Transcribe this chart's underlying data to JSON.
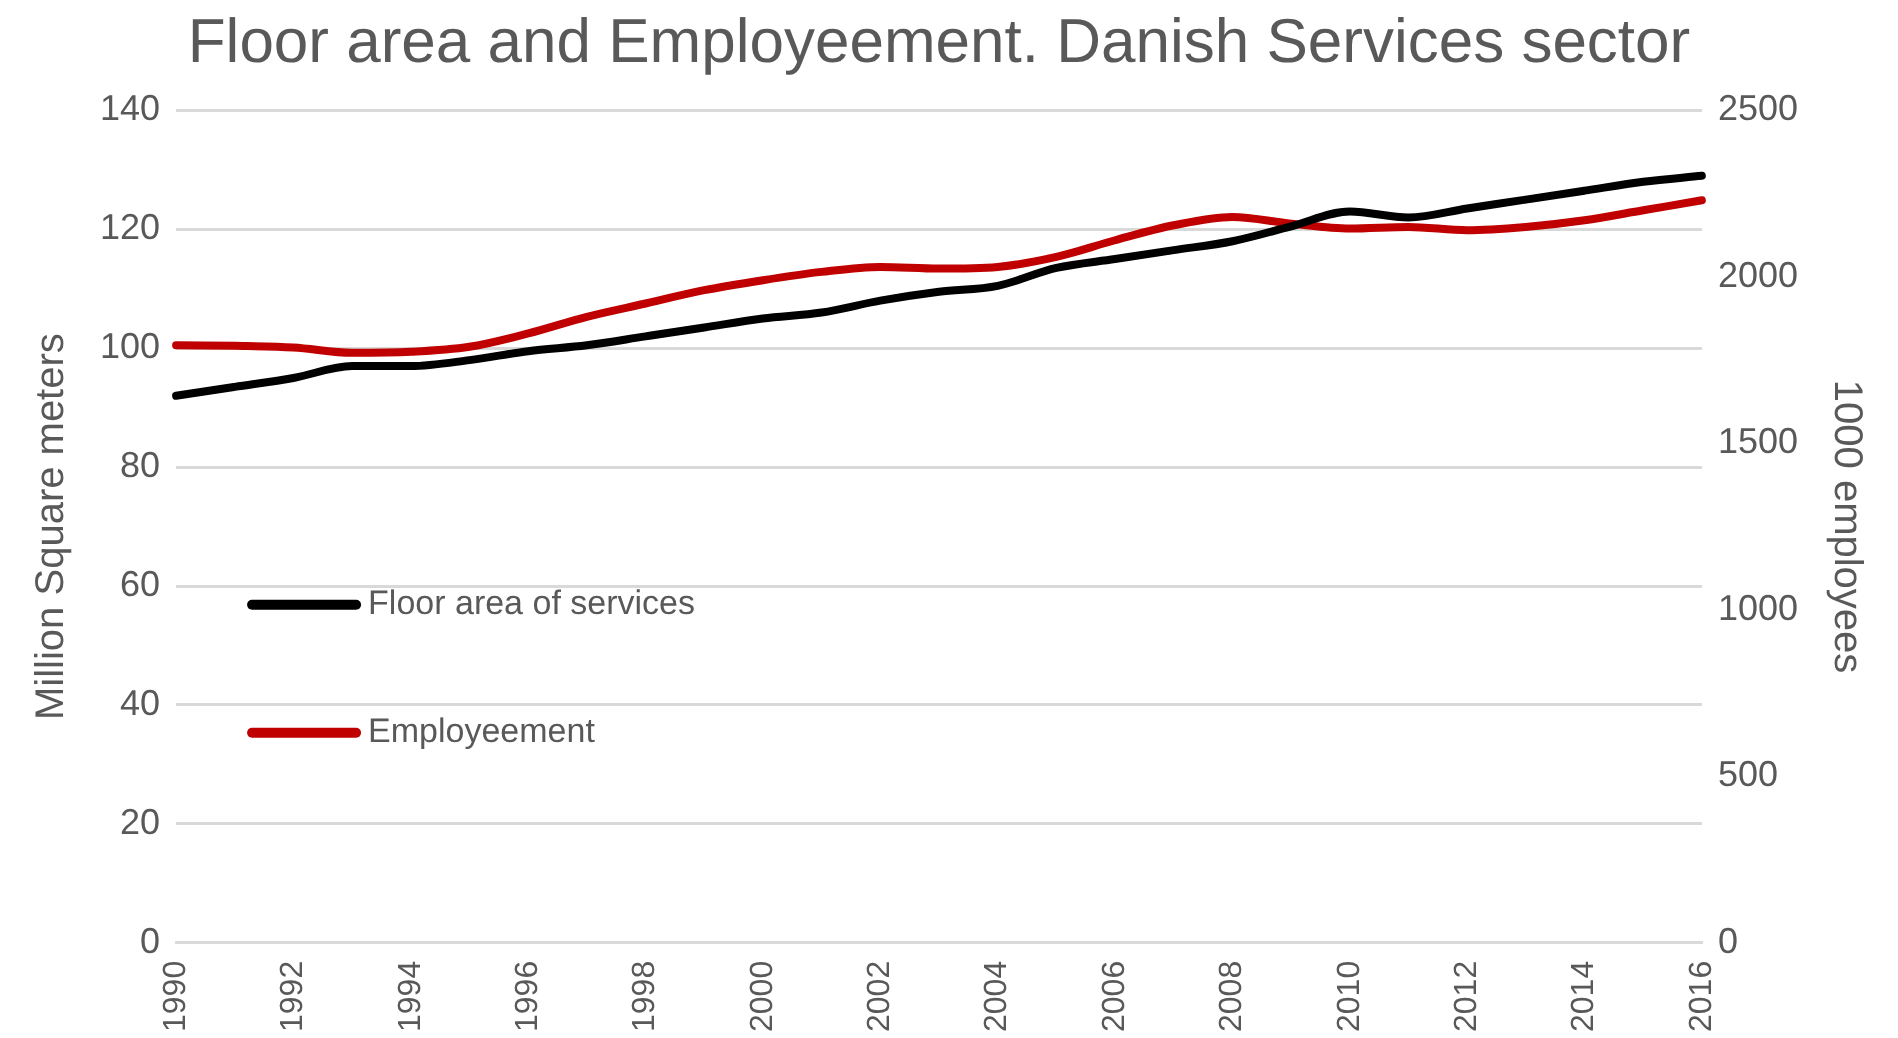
{
  "chart_data": {
    "type": "line",
    "title": "Floor area and Employeement. Danish Services sector",
    "ylabel": "Million Square meters",
    "y2label": "1000 employees",
    "categories": [
      "1990",
      null,
      "1992",
      null,
      "1994",
      null,
      "1996",
      null,
      "1998",
      null,
      "2000",
      null,
      "2002",
      null,
      "2004",
      null,
      "2006",
      null,
      "2008",
      null,
      "2010",
      null,
      "2012",
      null,
      "2014",
      null,
      "2016"
    ],
    "series": [
      {
        "name": "Floor area of services",
        "color": "#000000",
        "values": [
          92,
          93.5,
          95,
          97,
          97,
          98,
          99.5,
          100.5,
          102,
          103.5,
          105,
          106,
          108,
          109.5,
          110.5,
          113.5,
          115,
          116.5,
          118,
          120.5,
          123,
          122,
          123.5,
          125,
          126.5,
          128,
          129
        ]
      },
      {
        "name": "Employeement",
        "color": "#c00000",
        "axis": "y2",
        "values": [
          1795,
          1793,
          1788,
          1772,
          1775,
          1790,
          1830,
          1880,
          1920,
          1960,
          1990,
          2015,
          2030,
          2025,
          2030,
          2060,
          2110,
          2155,
          2180,
          2160,
          2145,
          2150,
          2140,
          2150,
          2170,
          2200,
          2230
        ]
      }
    ],
    "ylim": [
      0,
      140
    ],
    "yticks": [
      0,
      20,
      40,
      60,
      80,
      100,
      120,
      140
    ],
    "y2lim": [
      0,
      2500
    ],
    "y2ticks": [
      0,
      500,
      1000,
      1500,
      2000,
      2500
    ],
    "grid": "y",
    "legend": "bottom left",
    "marker": "none",
    "line_style": "solid"
  }
}
